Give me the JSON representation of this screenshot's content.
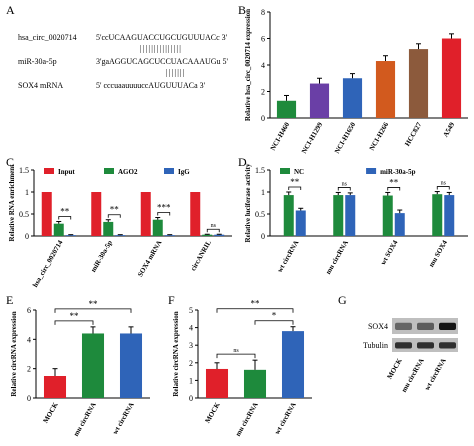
{
  "panels": {
    "A": {
      "label": "A",
      "rows": [
        {
          "name": "hsa_circ_0020714",
          "seq": "5'ccUCAAGUACCUGCUGUUUACc 3'"
        },
        {
          "name": "",
          "seq": "|||||||||||||||"
        },
        {
          "name": "miR-30a-5p",
          "seq": "3'gaAGGUCAGCUCCUACAAAUGu 5'"
        },
        {
          "name": "",
          "seq": "|||||||"
        },
        {
          "name": "SOX4 mRNA",
          "seq": "5' cccuaauuuuccAUGUUUACa 3'"
        }
      ]
    },
    "B": {
      "label": "B"
    },
    "C": {
      "label": "C"
    },
    "D": {
      "label": "D"
    },
    "E": {
      "label": "E"
    },
    "F": {
      "label": "F"
    },
    "G": {
      "label": "G",
      "bands": [
        "SOX4",
        "Tubulin"
      ],
      "lanes": [
        "MOCK",
        "mu circRNA",
        "wt circRNA"
      ],
      "sox4_intensity": [
        0.55,
        0.6,
        1.0
      ]
    }
  },
  "chart_data": [
    {
      "panel": "B",
      "type": "bar",
      "ylabel": "Relative hsa_circ_0020714 expression",
      "ylim": [
        0,
        8
      ],
      "yticks": [
        0,
        2,
        4,
        6,
        8
      ],
      "categories": [
        "NCI-H460",
        "NCI-H1299",
        "NCI-H1650",
        "NCI-H266",
        "HCC827",
        "A549"
      ],
      "values": [
        1.3,
        2.6,
        3.0,
        4.3,
        5.2,
        6.0
      ],
      "errors": [
        0.4,
        0.4,
        0.35,
        0.4,
        0.4,
        0.35
      ],
      "colors": [
        "#1e8a3c",
        "#6a3fa6",
        "#2f64b8",
        "#d25a1e",
        "#8c5a3c",
        "#e0202a"
      ]
    },
    {
      "panel": "C",
      "type": "bar",
      "ylabel": "Relative RNA enrichment",
      "ylim": [
        0,
        1.5
      ],
      "yticks": [
        0,
        0.5,
        1,
        1.5
      ],
      "categories": [
        "hsa_circ_0020714",
        "miR-30a-5p",
        "SOX4 mRNA",
        "circANRIL"
      ],
      "series": [
        {
          "name": "Input",
          "color": "#e0202a",
          "values": [
            1,
            1,
            1,
            1
          ],
          "errors": [
            0,
            0,
            0,
            0
          ]
        },
        {
          "name": "AGO2",
          "color": "#1e8a3c",
          "values": [
            0.28,
            0.32,
            0.37,
            0.03
          ],
          "errors": [
            0.05,
            0.05,
            0.05,
            0.01
          ]
        },
        {
          "name": "IgG",
          "color": "#2f64b8",
          "values": [
            0.02,
            0.02,
            0.02,
            0.03
          ],
          "errors": [
            0.01,
            0.01,
            0.01,
            0.01
          ]
        }
      ],
      "sig": [
        "**",
        "**",
        "***",
        "ns"
      ]
    },
    {
      "panel": "D",
      "type": "bar",
      "ylabel": "Relative luciferase activity",
      "ylim": [
        0,
        1.5
      ],
      "yticks": [
        0,
        0.5,
        1,
        1.5
      ],
      "categories": [
        "wt circRNA",
        "mu circRNA",
        "wt SOX4",
        "mu SOX4"
      ],
      "series": [
        {
          "name": "NC",
          "color": "#1e8a3c",
          "values": [
            0.93,
            0.93,
            0.92,
            0.95
          ],
          "errors": [
            0.07,
            0.06,
            0.07,
            0.06
          ]
        },
        {
          "name": "miR-30a-5p",
          "color": "#2f64b8",
          "values": [
            0.58,
            0.93,
            0.52,
            0.93
          ],
          "errors": [
            0.05,
            0.05,
            0.07,
            0.06
          ]
        }
      ],
      "sig": [
        "**",
        "ns",
        "**",
        "ns"
      ]
    },
    {
      "panel": "E",
      "type": "bar",
      "ylabel": "Relative circRNA expression",
      "ylim": [
        0,
        6
      ],
      "yticks": [
        0,
        2,
        4,
        6
      ],
      "categories": [
        "MOCK",
        "mu circRNA",
        "wt circRNA"
      ],
      "values": [
        1.5,
        4.4,
        4.4
      ],
      "errors": [
        0.5,
        0.45,
        0.45
      ],
      "colors": [
        "#e0202a",
        "#1e8a3c",
        "#2f64b8"
      ],
      "sig": [
        {
          "from": 0,
          "to": 1,
          "text": "**"
        },
        {
          "from": 0,
          "to": 2,
          "text": "**"
        }
      ]
    },
    {
      "panel": "F",
      "type": "bar",
      "ylabel": "Relative circRNA expression",
      "ylim": [
        0,
        5
      ],
      "yticks": [
        0,
        1,
        2,
        3,
        4,
        5
      ],
      "categories": [
        "MOCK",
        "mu circRNA",
        "wt circRNA"
      ],
      "values": [
        1.65,
        1.6,
        3.8
      ],
      "errors": [
        0.35,
        0.55,
        0.25
      ],
      "colors": [
        "#e0202a",
        "#1e8a3c",
        "#2f64b8"
      ],
      "sig": [
        {
          "from": 0,
          "to": 1,
          "text": "ns"
        },
        {
          "from": 1,
          "to": 2,
          "text": "*"
        },
        {
          "from": 0,
          "to": 2,
          "text": "**"
        }
      ]
    }
  ]
}
